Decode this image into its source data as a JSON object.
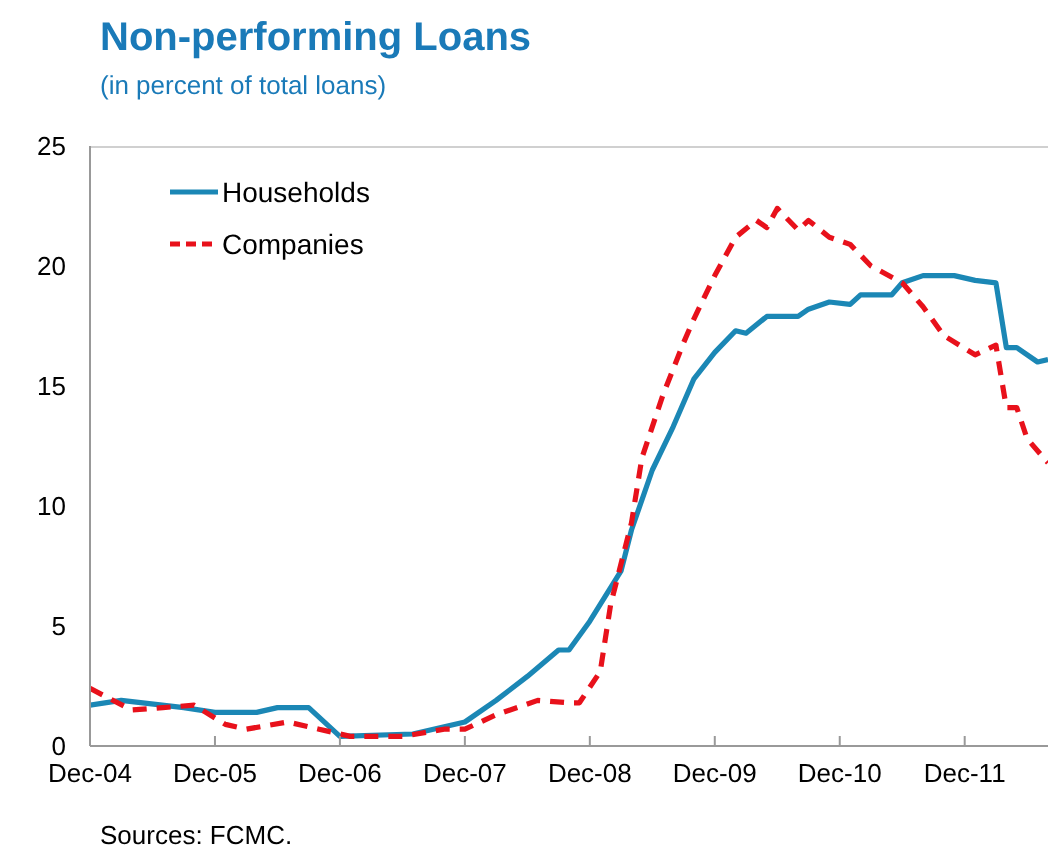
{
  "chart_data": {
    "type": "line",
    "title": "Non-performing Loans",
    "subtitle": "(in percent of total loans)",
    "annotations": [
      "Sources: FCMC."
    ],
    "xlim": [
      "2004-12",
      "2012-08"
    ],
    "xticks": [
      {
        "value": "2004-12",
        "label": "Dec-04"
      },
      {
        "value": "2005-12",
        "label": "Dec-05"
      },
      {
        "value": "2006-12",
        "label": "Dec-06"
      },
      {
        "value": "2007-12",
        "label": "Dec-07"
      },
      {
        "value": "2008-12",
        "label": "Dec-08"
      },
      {
        "value": "2009-12",
        "label": "Dec-09"
      },
      {
        "value": "2010-12",
        "label": "Dec-10"
      },
      {
        "value": "2011-12",
        "label": "Dec-11"
      }
    ],
    "ylim": [
      0,
      25
    ],
    "yticks": [
      0,
      5,
      10,
      15,
      20,
      25
    ],
    "grid": false,
    "legend": "top left",
    "marker": "none",
    "series": [
      {
        "name": "Households",
        "color": "#1b87b5",
        "line_style": "solid",
        "x": [
          "2004-12",
          "2005-03",
          "2005-09",
          "2005-12",
          "2006-04",
          "2006-06",
          "2006-09",
          "2006-12",
          "2007-07",
          "2007-12",
          "2008-03",
          "2008-06",
          "2008-09",
          "2008-10",
          "2008-12",
          "2009-03",
          "2009-04",
          "2009-06",
          "2009-08",
          "2009-10",
          "2009-12",
          "2010-02",
          "2010-03",
          "2010-05",
          "2010-08",
          "2010-09",
          "2010-11",
          "2011-01",
          "2011-02",
          "2011-05",
          "2011-06",
          "2011-08",
          "2011-11",
          "2012-01",
          "2012-03",
          "2012-04",
          "2012-05",
          "2012-07",
          "2012-08"
        ],
        "values": [
          1.7,
          1.9,
          1.6,
          1.4,
          1.4,
          1.6,
          1.6,
          0.4,
          0.5,
          1.0,
          1.9,
          2.9,
          4.0,
          4.0,
          5.2,
          7.3,
          9.0,
          11.5,
          13.3,
          15.3,
          16.4,
          17.3,
          17.2,
          17.9,
          17.9,
          18.2,
          18.5,
          18.4,
          18.8,
          18.8,
          19.3,
          19.6,
          19.6,
          19.4,
          19.3,
          16.6,
          16.6,
          16.0,
          16.1
        ]
      },
      {
        "name": "Companies",
        "color": "#e8111b",
        "line_style": "dashed",
        "x": [
          "2004-12",
          "2005-04",
          "2005-07",
          "2005-10",
          "2006-01",
          "2006-03",
          "2006-07",
          "2006-10",
          "2007-01",
          "2007-06",
          "2007-10",
          "2007-12",
          "2008-03",
          "2008-07",
          "2008-10",
          "2008-11",
          "2009-01",
          "2009-02",
          "2009-04",
          "2009-05",
          "2009-07",
          "2009-09",
          "2009-10",
          "2009-12",
          "2010-02",
          "2010-04",
          "2010-05",
          "2010-06",
          "2010-08",
          "2010-09",
          "2010-11",
          "2011-01",
          "2011-03",
          "2011-06",
          "2011-08",
          "2011-10",
          "2012-01",
          "2012-03",
          "2012-04",
          "2012-05",
          "2012-06",
          "2012-08"
        ],
        "values": [
          2.4,
          1.5,
          1.6,
          1.7,
          0.9,
          0.7,
          1.0,
          0.7,
          0.4,
          0.4,
          0.7,
          0.7,
          1.3,
          1.9,
          1.8,
          1.8,
          3.1,
          5.9,
          9.3,
          12.0,
          14.6,
          16.8,
          17.8,
          19.6,
          21.2,
          21.9,
          21.6,
          22.4,
          21.5,
          21.9,
          21.2,
          20.9,
          20.0,
          19.3,
          18.3,
          17.1,
          16.3,
          16.7,
          14.1,
          14.1,
          12.8,
          11.8
        ]
      }
    ]
  }
}
